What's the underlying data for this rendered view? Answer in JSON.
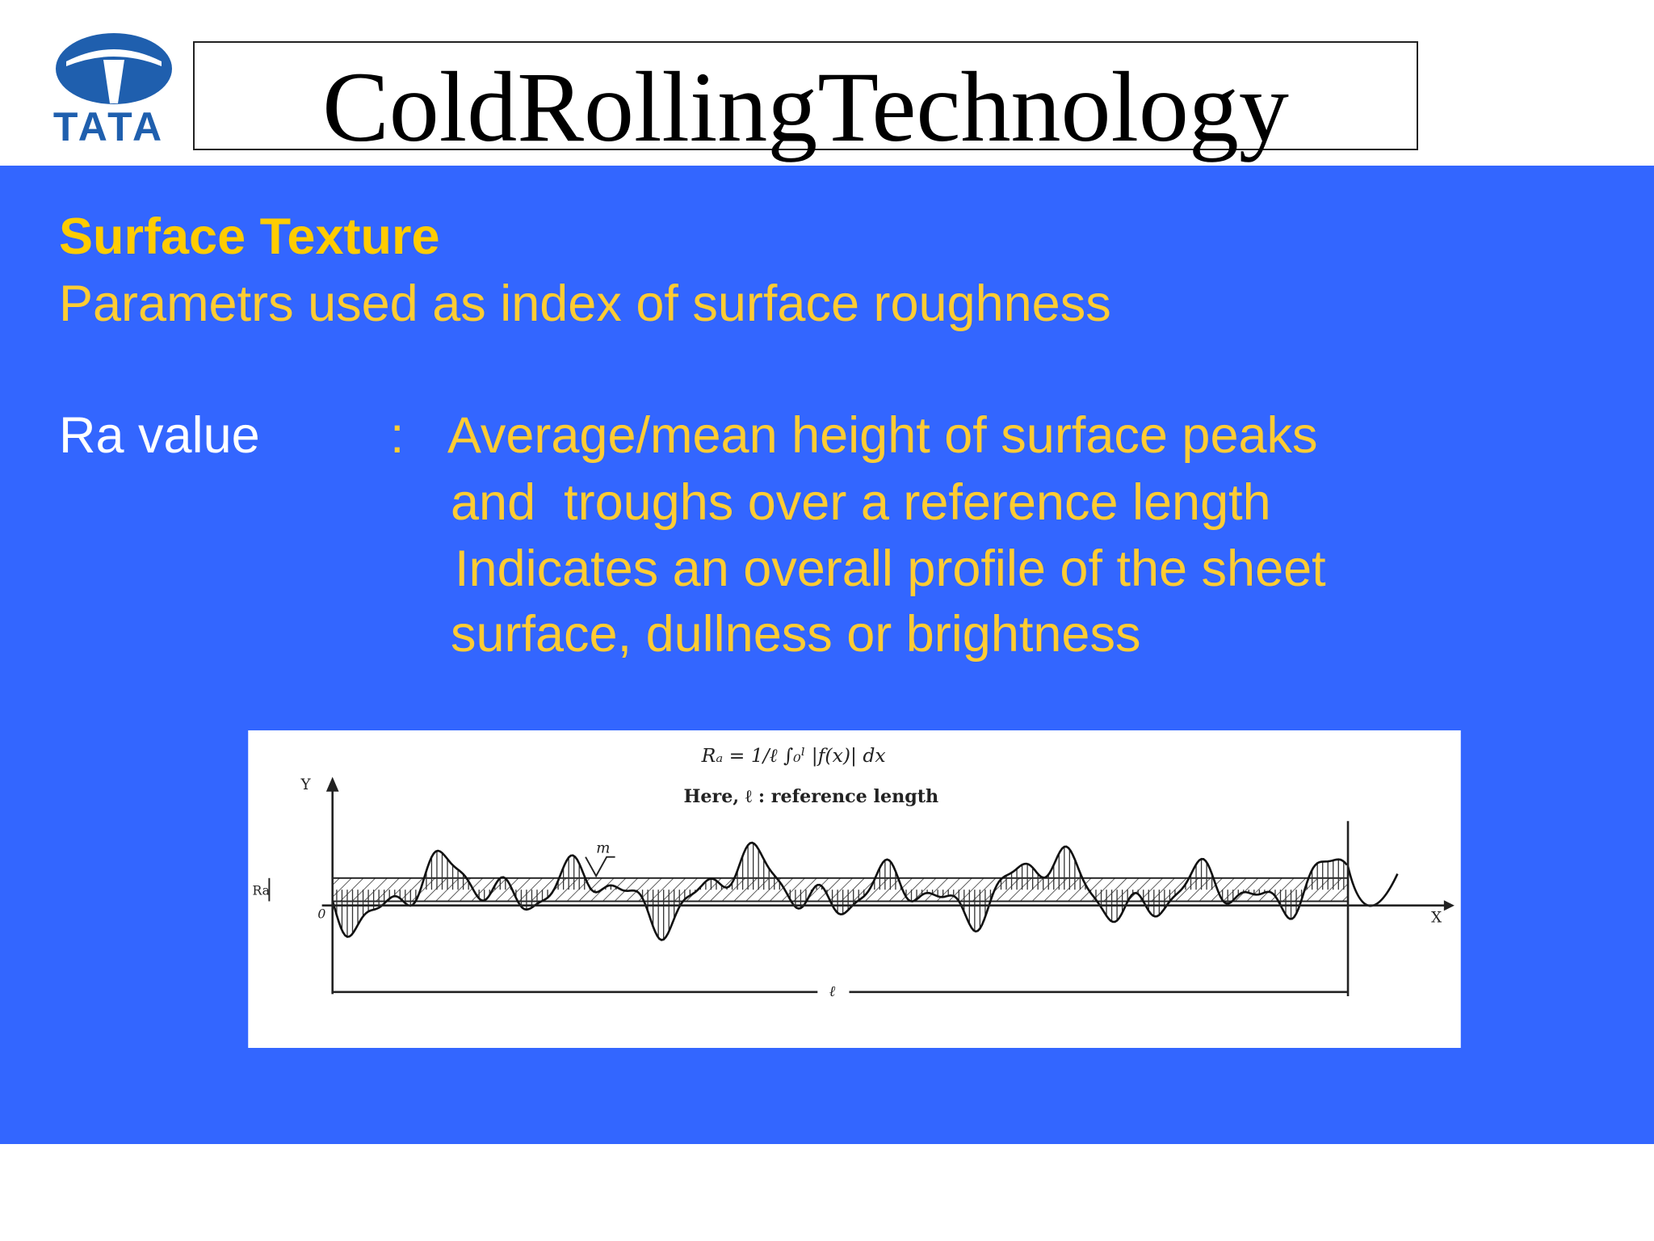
{
  "header": {
    "logo": "TATA",
    "title": "ColdRollingTechnology"
  },
  "content": {
    "heading": "Surface Texture",
    "subheading": "Parametrs used as index of surface roughness",
    "term": "Ra value",
    "separator": ":",
    "definition_lines": [
      "Average/mean height of surface peaks",
      "and  troughs over a reference length",
      "Indicates an overall profile of the sheet",
      "surface, dullness or brightness"
    ]
  },
  "figure": {
    "formula": "Rₐ = 1/ℓ ∫₀ˡ |f(x)| dx",
    "note": "Here, ℓ : reference length",
    "y_label": "Y",
    "x_label": "X",
    "mean_label": "m",
    "ra_label": "Ra",
    "origin_label": "0",
    "length_label": "ℓ"
  }
}
